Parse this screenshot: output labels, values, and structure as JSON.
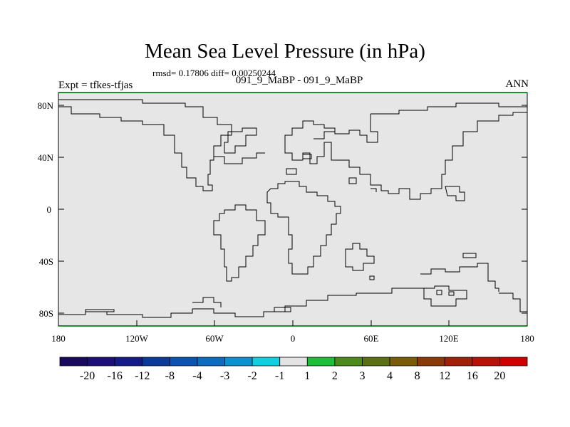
{
  "header": {
    "title": "Mean Sea Level Pressure (in hPa)",
    "stats": "rmsd= 0.17806 diff= 0.00250244",
    "left_label": "Expt = tfkes-tfjas",
    "center_label": "091_9_MaBP - 091_9_MaBP",
    "right_label": "ANN"
  },
  "axes": {
    "y_ticks": [
      "80N",
      "40N",
      "0",
      "40S",
      "80S"
    ],
    "x_ticks": [
      "180",
      "120W",
      "60W",
      "0",
      "60E",
      "120E",
      "180"
    ]
  },
  "colorbar": {
    "labels": [
      "-20",
      "-16",
      "-12",
      "-8",
      "-4",
      "-3",
      "-2",
      "-1",
      "1",
      "2",
      "3",
      "4",
      "8",
      "12",
      "16",
      "20"
    ],
    "colors": [
      "#1a0a5e",
      "#1d0f7a",
      "#151c8a",
      "#0b3a9a",
      "#0a53b0",
      "#0b6cc0",
      "#0b90d0",
      "#10cfe0",
      "#e3e3e3",
      "#1fbe3a",
      "#4c8a1e",
      "#5a7012",
      "#7a5c08",
      "#8a3a08",
      "#a02008",
      "#b81208",
      "#d00000"
    ]
  },
  "map": {
    "background": "#e6e6e6",
    "frame_color": "#1a8f2a",
    "coast_color": "#000000"
  }
}
